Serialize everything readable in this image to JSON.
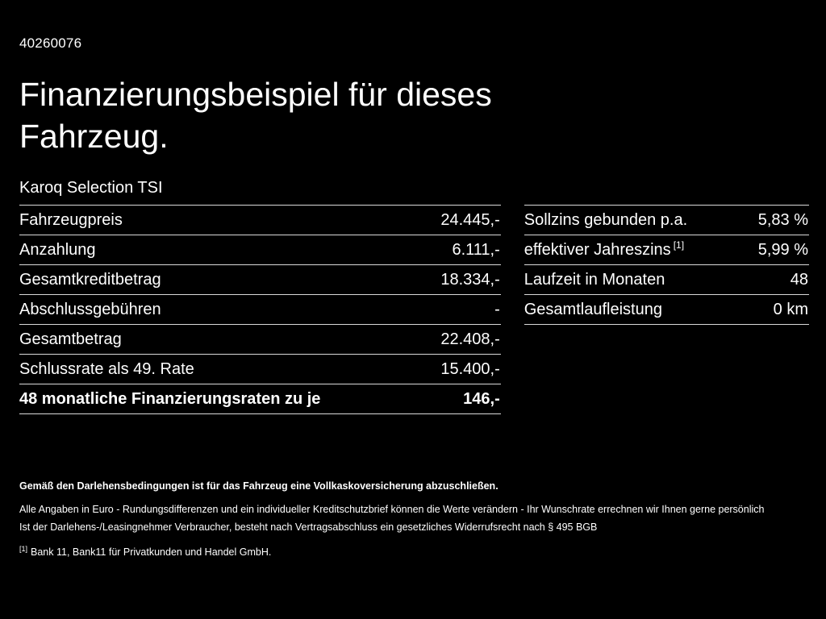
{
  "header": {
    "document_id": "40260076",
    "title": "Finanzierungsbeispiel für dieses Fahrzeug.",
    "vehicle_model": "Karoq Selection TSI"
  },
  "finance_table": {
    "rows": [
      {
        "label": "Fahrzeugpreis",
        "value": "24.445,-"
      },
      {
        "label": "Anzahlung",
        "value": "6.111,-"
      },
      {
        "label": "Gesamtkreditbetrag",
        "value": "18.334,-"
      },
      {
        "label": "Abschlussgebühren",
        "value": "-"
      },
      {
        "label": "Gesamtbetrag",
        "value": "22.408,-"
      },
      {
        "label": "Schlussrate als 49. Rate",
        "value": "15.400,-"
      },
      {
        "label": "48 monatliche Finanzierungsraten zu je",
        "value": "146,-"
      }
    ]
  },
  "conditions_table": {
    "rows": [
      {
        "label": "Sollzins gebunden p.a.",
        "value": "5,83 %"
      },
      {
        "label": "effektiver Jahreszins",
        "footnote_marker": "[1]",
        "value": "5,99 %"
      },
      {
        "label": "Laufzeit in Monaten",
        "value": "48"
      },
      {
        "label": "Gesamtlaufleistung",
        "value": "0 km"
      }
    ]
  },
  "footnotes": {
    "insurance_note": "Gemäß den Darlehensbedingungen ist für das Fahrzeug eine Vollkaskoversicherung abzuschließen.",
    "disclaimer1": "Alle Angaben in Euro - Rundungsdifferenzen und ein individueller Kreditschutzbrief können die Werte verändern - Ihr Wunschrate errechnen wir Ihnen gerne persönlich",
    "disclaimer2": "Ist der Darlehens-/Leasingnehmer Verbraucher, besteht nach Vertragsabschluss ein gesetzliches Widerrufsrecht nach § 495 BGB",
    "bank_ref_marker": "[1]",
    "bank_ref": "Bank 11, Bank11 für Privatkunden und Handel GmbH."
  },
  "colors": {
    "background": "#000000",
    "text": "#ffffff",
    "divider": "#d9d9d9"
  }
}
